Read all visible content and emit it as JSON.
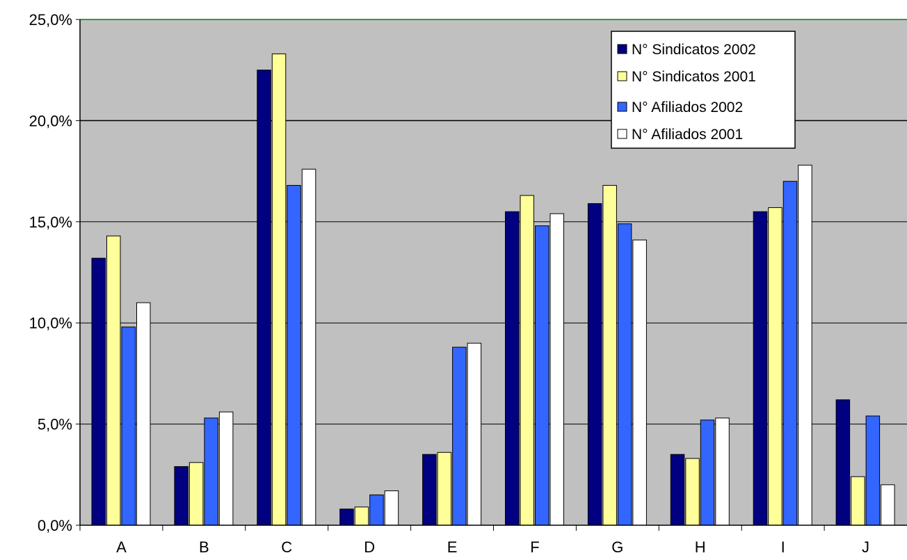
{
  "chart_data": {
    "type": "bar",
    "categories": [
      "A",
      "B",
      "C",
      "D",
      "E",
      "F",
      "G",
      "H",
      "I",
      "J"
    ],
    "series": [
      {
        "name": "N° Sindicatos 2002",
        "color": "#000080",
        "values": [
          13.2,
          2.9,
          22.5,
          0.8,
          3.5,
          15.5,
          15.9,
          3.5,
          15.5,
          6.2
        ]
      },
      {
        "name": "N° Sindicatos 2001",
        "color": "#FFFF99",
        "values": [
          14.3,
          3.1,
          23.3,
          0.9,
          3.6,
          16.3,
          16.8,
          3.3,
          15.7,
          2.4
        ]
      },
      {
        "name": "N° Afiliados 2002",
        "color": "#3366FF",
        "values": [
          9.8,
          5.3,
          16.8,
          1.5,
          8.8,
          14.8,
          14.9,
          5.2,
          17.0,
          5.4
        ]
      },
      {
        "name": "N° Afiliados 2001",
        "color": "#FFFFFF",
        "values": [
          11.0,
          5.6,
          17.6,
          1.7,
          9.0,
          15.4,
          14.1,
          5.3,
          17.8,
          2.0
        ]
      }
    ],
    "y_ticks": [
      "0,0%",
      "5,0%",
      "10,0%",
      "15,0%",
      "20,0%",
      "25,0%"
    ],
    "ylim": [
      0,
      25
    ],
    "y_step": 5,
    "grid": true,
    "plot_background": "#C0C0C0",
    "legend_position": "top-right"
  }
}
